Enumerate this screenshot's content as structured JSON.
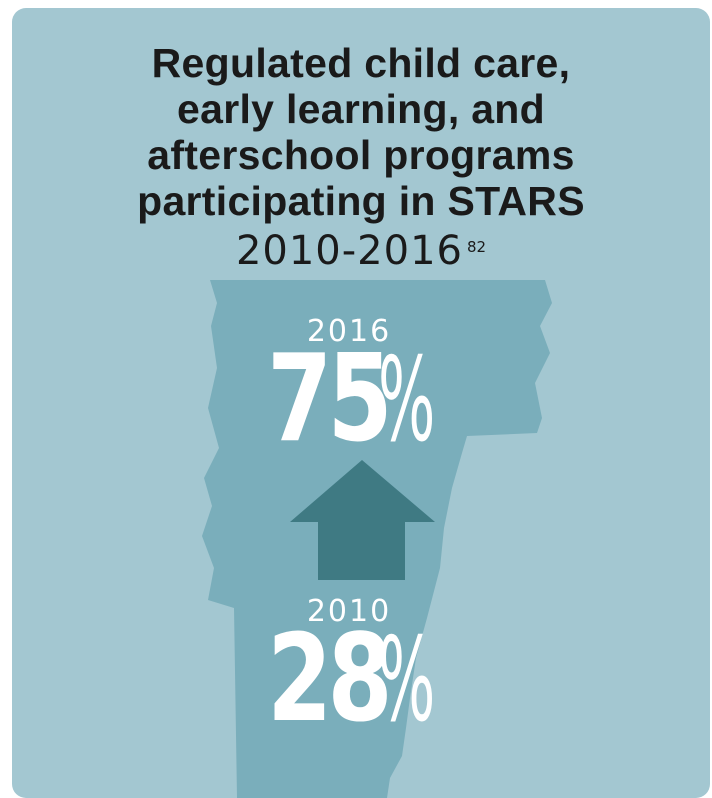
{
  "title": {
    "lines": [
      "Regulated child care,",
      "early learning, and",
      "afterschool programs",
      "participating in STARS"
    ],
    "years": "2010-2016",
    "footnote": "82"
  },
  "stats": {
    "recent": {
      "year": "2016",
      "value": "75",
      "unit": "%"
    },
    "earlier": {
      "year": "2010",
      "value": "28",
      "unit": "%"
    }
  },
  "colors": {
    "background": "#a3c7d1",
    "map": "#7aaebb",
    "arrow": "#3f7a83",
    "text": "#1a1a1a",
    "stat_text": "#ffffff"
  },
  "icons": {
    "map": "vermont-map-icon",
    "arrow": "up-arrow-icon"
  }
}
